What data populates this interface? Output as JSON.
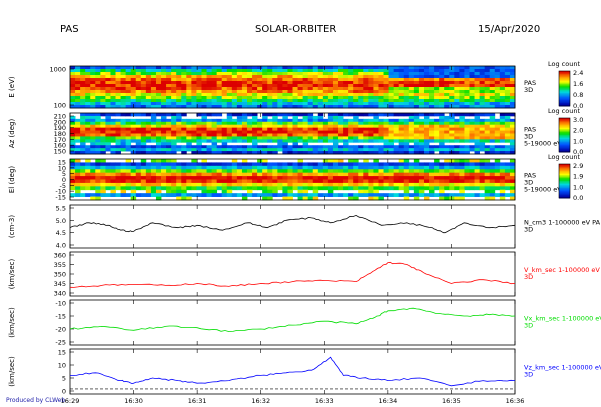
{
  "header": {
    "instrument": "PAS",
    "mission": "SOLAR-ORBITER",
    "date": "15/Apr/2020"
  },
  "footer": "Produced by CLWeb",
  "chart_data": [
    {
      "type": "heatmap",
      "ylabel": "E (eV)",
      "ytick_labels": [
        "1000",
        "100"
      ],
      "colorbar": {
        "title": "Log count",
        "ticks": [
          "2.4",
          "1.6",
          "0.8",
          "0.0"
        ]
      },
      "right_labels": [
        "PAS",
        "3D"
      ],
      "description_levels": {
        "low_band": 1.7,
        "mid_band": 2.4,
        "high_band": 1.2
      }
    },
    {
      "type": "heatmap",
      "ylabel": "Az (deg)",
      "ytick_labels": [
        "210",
        "200",
        "190",
        "180",
        "170",
        "160",
        "150"
      ],
      "colorbar": {
        "title": "Log count",
        "ticks": [
          "3.0",
          "2.0",
          "1.0",
          "0.0"
        ]
      },
      "right_labels": [
        "PAS",
        "3D",
        "5-19000 eV"
      ]
    },
    {
      "type": "heatmap",
      "ylabel": "El (deg)",
      "ytick_labels": [
        "15",
        "10",
        "5",
        "0",
        "-5",
        "-10",
        "-15"
      ],
      "colorbar": {
        "title": "Log count",
        "ticks": [
          "2.9",
          "1.9",
          "1.0",
          "0.0"
        ]
      },
      "right_labels": [
        "PAS",
        "3D",
        "5-19000 eV"
      ]
    },
    {
      "type": "line",
      "ylabel": "(cm-3)",
      "ylim": [
        4.0,
        5.5
      ],
      "ytick_labels": [
        "5.5",
        "5.0",
        "4.5",
        "4.0"
      ],
      "legend_lines": [
        "N_cm3 1-100000 eV PA",
        "3D"
      ],
      "color": "#000000",
      "series": [
        {
          "time_min": [
            29.0,
            29.3,
            29.6,
            29.8,
            30.0,
            30.3,
            30.7,
            31.0,
            31.4,
            31.8,
            32.1,
            32.4,
            32.8,
            33.1,
            33.5,
            33.9,
            34.3,
            34.7,
            34.9,
            35.2,
            35.6,
            36.0
          ],
          "values": [
            4.7,
            4.9,
            4.8,
            4.6,
            4.55,
            4.9,
            4.7,
            4.8,
            4.6,
            4.9,
            4.7,
            5.0,
            5.1,
            4.9,
            5.2,
            4.8,
            4.9,
            4.7,
            4.5,
            4.9,
            4.7,
            4.8
          ]
        }
      ]
    },
    {
      "type": "line",
      "ylabel": "(km/sec)",
      "ylim": [
        340,
        360
      ],
      "ytick_labels": [
        "360",
        "355",
        "350",
        "345",
        "340"
      ],
      "legend_lines": [
        "V_km_sec 1-100000 eV",
        "3D"
      ],
      "color": "#ff0000",
      "series": [
        {
          "time_min": [
            29.0,
            29.5,
            30.0,
            30.5,
            31.0,
            31.5,
            32.0,
            32.5,
            33.0,
            33.5,
            33.8,
            34.0,
            34.3,
            34.6,
            35.0,
            35.5,
            36.0
          ],
          "values": [
            343,
            344,
            344.5,
            344,
            345,
            343.5,
            345,
            346,
            346.5,
            346,
            352,
            356,
            355,
            350,
            345,
            347,
            345
          ]
        }
      ]
    },
    {
      "type": "line",
      "ylabel": "(km/sec)",
      "ylim": [
        -25,
        -10
      ],
      "ytick_labels": [
        "-10",
        "-15",
        "-20",
        "-25"
      ],
      "legend_lines": [
        "Vx_km_sec 1-100000 eV",
        "3D"
      ],
      "color": "#00dd00",
      "series": [
        {
          "time_min": [
            29.0,
            29.5,
            30.0,
            30.5,
            31.0,
            31.5,
            32.0,
            32.5,
            33.0,
            33.5,
            33.8,
            34.0,
            34.4,
            34.8,
            35.2,
            35.6,
            36.0
          ],
          "values": [
            -20,
            -19,
            -20.5,
            -19,
            -19.5,
            -21,
            -20,
            -18.5,
            -17,
            -18,
            -15.5,
            -13,
            -12,
            -14,
            -15,
            -14.5,
            -15
          ]
        }
      ]
    },
    {
      "type": "line",
      "ylabel": "(km/sec)",
      "ylim": [
        0,
        15
      ],
      "ytick_labels": [
        "15",
        "10",
        "5",
        "0"
      ],
      "legend_lines": [
        "Vz_km_sec 1-100000 eV",
        "3D"
      ],
      "color": "#0000ff",
      "series": [
        {
          "time_min": [
            29.0,
            29.4,
            29.8,
            30.0,
            30.3,
            30.7,
            31.0,
            31.5,
            32.0,
            32.4,
            32.8,
            33.1,
            33.3,
            33.6,
            34.0,
            34.5,
            35.0,
            35.5,
            36.0
          ],
          "values": [
            6,
            7,
            4,
            3,
            5,
            4,
            3,
            4,
            6,
            7,
            8,
            13,
            6,
            5,
            4,
            5,
            2,
            4,
            4
          ]
        }
      ]
    }
  ],
  "x_axis": {
    "tick_labels": [
      "16:29",
      "16:30",
      "16:31",
      "16:32",
      "16:33",
      "16:34",
      "16:35",
      "16:36"
    ]
  }
}
